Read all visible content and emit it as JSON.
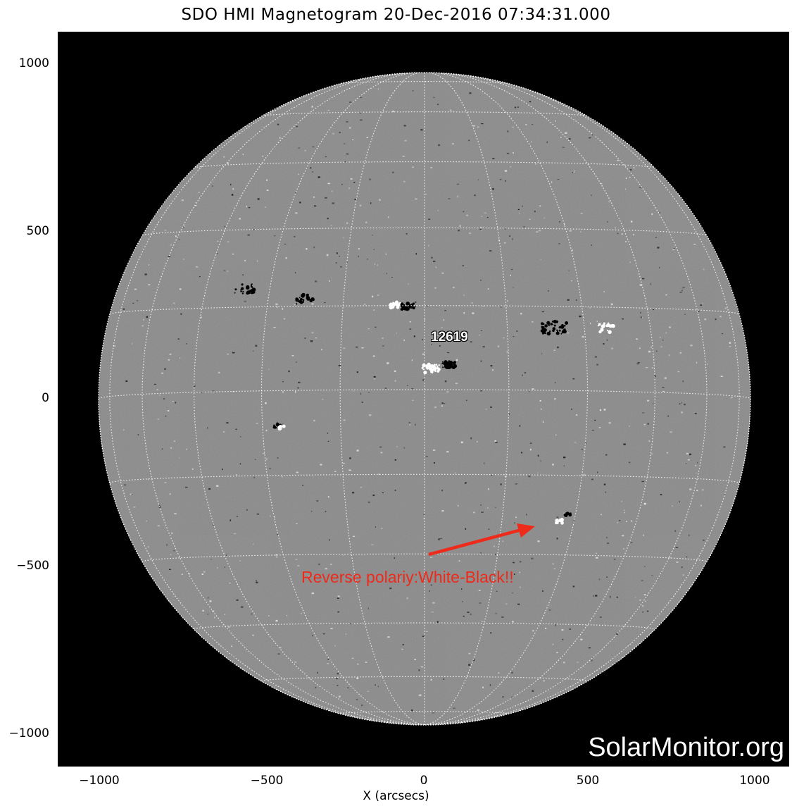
{
  "title": "SDO HMI Magnetogram 20-Dec-2016 07:34:31.000",
  "axes": {
    "y_ticks": [
      "1000",
      "500",
      "0",
      "−500",
      "−1000"
    ],
    "x_ticks": [
      "−1000",
      "−500",
      "0",
      "500",
      "1000"
    ],
    "xlabel": "X (arcsecs)"
  },
  "region_label": "12619",
  "annotation": "Reverse polariy:White-Black!!",
  "watermark": "SolarMonitor.org",
  "colors": {
    "disk_gray": "#858585",
    "background": "#000000",
    "annotation_red": "#ee2a1a",
    "grid": "#ffffff"
  }
}
